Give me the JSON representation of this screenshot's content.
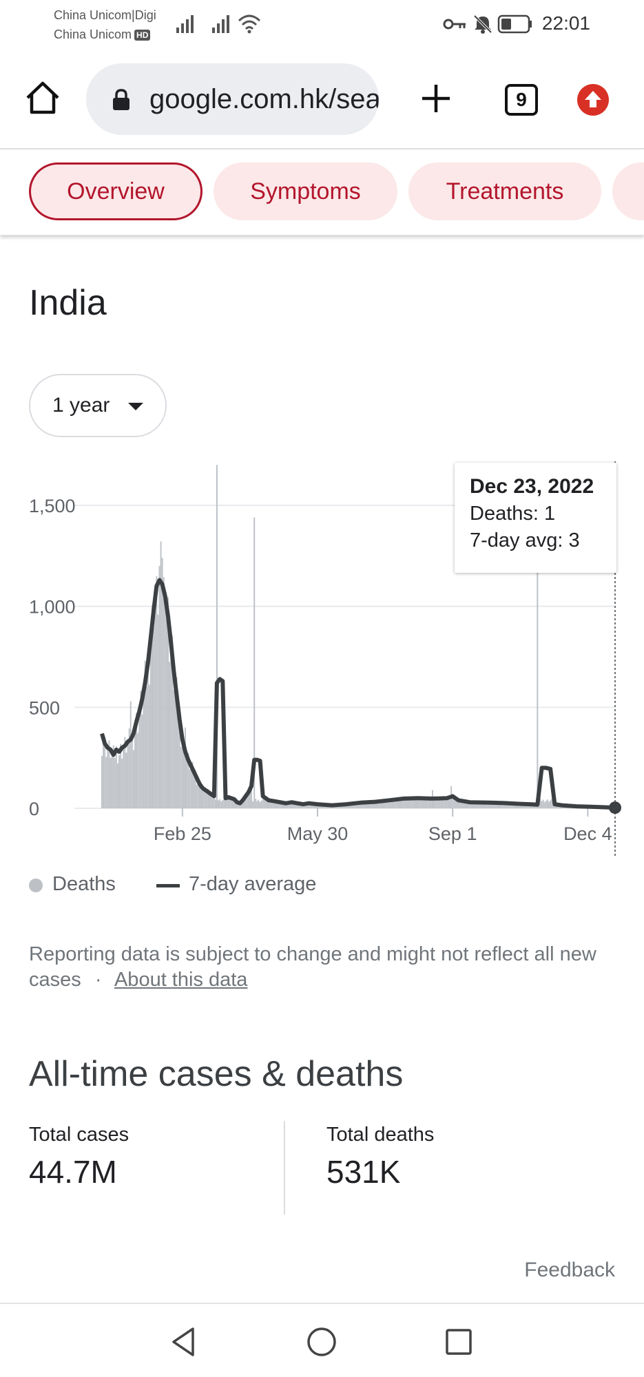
{
  "status_bar": {
    "carrier1": "China Unicom|Digi",
    "carrier2": "China Unicom",
    "carrier2_badge": "HD",
    "time": "22:01",
    "icons": [
      "signal-icon",
      "signal-icon",
      "wifi-icon",
      "key-icon",
      "bell-off-icon",
      "battery-icon"
    ]
  },
  "browser": {
    "url": "google.com.hk/search",
    "tab_count": "9",
    "icons": [
      "home-icon",
      "lock-icon",
      "plus-icon",
      "tabs-icon",
      "update-icon"
    ],
    "accent_color": "#d93025"
  },
  "chips": [
    {
      "label": "Overview",
      "active": true
    },
    {
      "label": "Symptoms",
      "active": false
    },
    {
      "label": "Treatments",
      "active": false
    }
  ],
  "region": {
    "title": "India"
  },
  "range": {
    "selected": "1 year"
  },
  "chart_data": {
    "type": "bar",
    "title": "",
    "xlabel": "",
    "ylabel": "",
    "ylim": [
      0,
      1700
    ],
    "y_ticks": [
      "1,500",
      "1,000",
      "500",
      "0"
    ],
    "y_tick_values": [
      1500,
      1000,
      500,
      0
    ],
    "x_ticks": [
      "Feb 25",
      "May 30",
      "Sep 1",
      "Dec 4"
    ],
    "x_tick_days": [
      56,
      150,
      244,
      338
    ],
    "x_range_days": [
      0,
      357
    ],
    "grid": true,
    "legend_placement": "bottom",
    "series": [
      {
        "name": "Deaths",
        "color": "#bdc1c6",
        "kind": "bars"
      },
      {
        "name": "7-day average",
        "color": "#3c4043",
        "kind": "line",
        "points": [
          [
            0,
            370
          ],
          [
            2,
            320
          ],
          [
            4,
            300
          ],
          [
            6,
            290
          ],
          [
            8,
            265
          ],
          [
            10,
            290
          ],
          [
            12,
            280
          ],
          [
            14,
            300
          ],
          [
            16,
            310
          ],
          [
            18,
            330
          ],
          [
            20,
            340
          ],
          [
            22,
            370
          ],
          [
            24,
            430
          ],
          [
            26,
            480
          ],
          [
            28,
            540
          ],
          [
            30,
            620
          ],
          [
            32,
            720
          ],
          [
            34,
            850
          ],
          [
            36,
            980
          ],
          [
            38,
            1100
          ],
          [
            40,
            1130
          ],
          [
            42,
            1110
          ],
          [
            44,
            1050
          ],
          [
            46,
            950
          ],
          [
            48,
            820
          ],
          [
            50,
            680
          ],
          [
            52,
            560
          ],
          [
            54,
            440
          ],
          [
            56,
            340
          ],
          [
            58,
            280
          ],
          [
            60,
            240
          ],
          [
            62,
            210
          ],
          [
            64,
            180
          ],
          [
            66,
            150
          ],
          [
            68,
            120
          ],
          [
            70,
            100
          ],
          [
            72,
            90
          ],
          [
            74,
            80
          ],
          [
            76,
            70
          ],
          [
            78,
            60
          ],
          [
            80,
            620
          ],
          [
            82,
            640
          ],
          [
            84,
            630
          ],
          [
            86,
            50
          ],
          [
            88,
            55
          ],
          [
            90,
            50
          ],
          [
            92,
            45
          ],
          [
            94,
            30
          ],
          [
            96,
            25
          ],
          [
            98,
            40
          ],
          [
            100,
            60
          ],
          [
            102,
            80
          ],
          [
            104,
            110
          ],
          [
            106,
            240
          ],
          [
            108,
            240
          ],
          [
            110,
            235
          ],
          [
            112,
            60
          ],
          [
            116,
            40
          ],
          [
            120,
            35
          ],
          [
            124,
            30
          ],
          [
            128,
            25
          ],
          [
            132,
            30
          ],
          [
            136,
            25
          ],
          [
            140,
            20
          ],
          [
            144,
            25
          ],
          [
            150,
            20
          ],
          [
            160,
            15
          ],
          [
            170,
            20
          ],
          [
            180,
            28
          ],
          [
            190,
            32
          ],
          [
            200,
            40
          ],
          [
            210,
            48
          ],
          [
            220,
            50
          ],
          [
            230,
            48
          ],
          [
            240,
            50
          ],
          [
            244,
            60
          ],
          [
            248,
            40
          ],
          [
            256,
            30
          ],
          [
            270,
            28
          ],
          [
            280,
            26
          ],
          [
            290,
            22
          ],
          [
            298,
            20
          ],
          [
            303,
            18
          ],
          [
            306,
            200
          ],
          [
            309,
            200
          ],
          [
            312,
            195
          ],
          [
            315,
            20
          ],
          [
            320,
            15
          ],
          [
            330,
            10
          ],
          [
            340,
            8
          ],
          [
            350,
            5
          ],
          [
            357,
            3
          ]
        ]
      }
    ],
    "bar_peaks": [
      [
        0,
        260
      ],
      [
        20,
        530
      ],
      [
        36,
        900
      ],
      [
        38,
        1150
      ],
      [
        40,
        1200
      ],
      [
        42,
        1240
      ],
      [
        44,
        1000
      ],
      [
        52,
        650
      ],
      [
        58,
        400
      ],
      [
        80,
        1720
      ],
      [
        106,
        1440
      ],
      [
        230,
        90
      ],
      [
        243,
        110
      ],
      [
        303,
        1720
      ]
    ],
    "tooltip": {
      "date": "Dec 23, 2022",
      "deaths_label": "Deaths: 1",
      "avg_label": "7-day avg: 3"
    }
  },
  "legend": {
    "deaths": "Deaths",
    "average": "7-day average"
  },
  "disclaimer": {
    "text": "Reporting data is subject to change and might not reflect all new cases",
    "separator": "·",
    "link": "About this data"
  },
  "all_time": {
    "title": "All-time cases & deaths",
    "cases_label": "Total cases",
    "cases_value": "44.7M",
    "deaths_label": "Total deaths",
    "deaths_value": "531K"
  },
  "feedback": "Feedback",
  "nav": {
    "icons": [
      "back-icon",
      "home-circle-icon",
      "recents-icon"
    ]
  }
}
